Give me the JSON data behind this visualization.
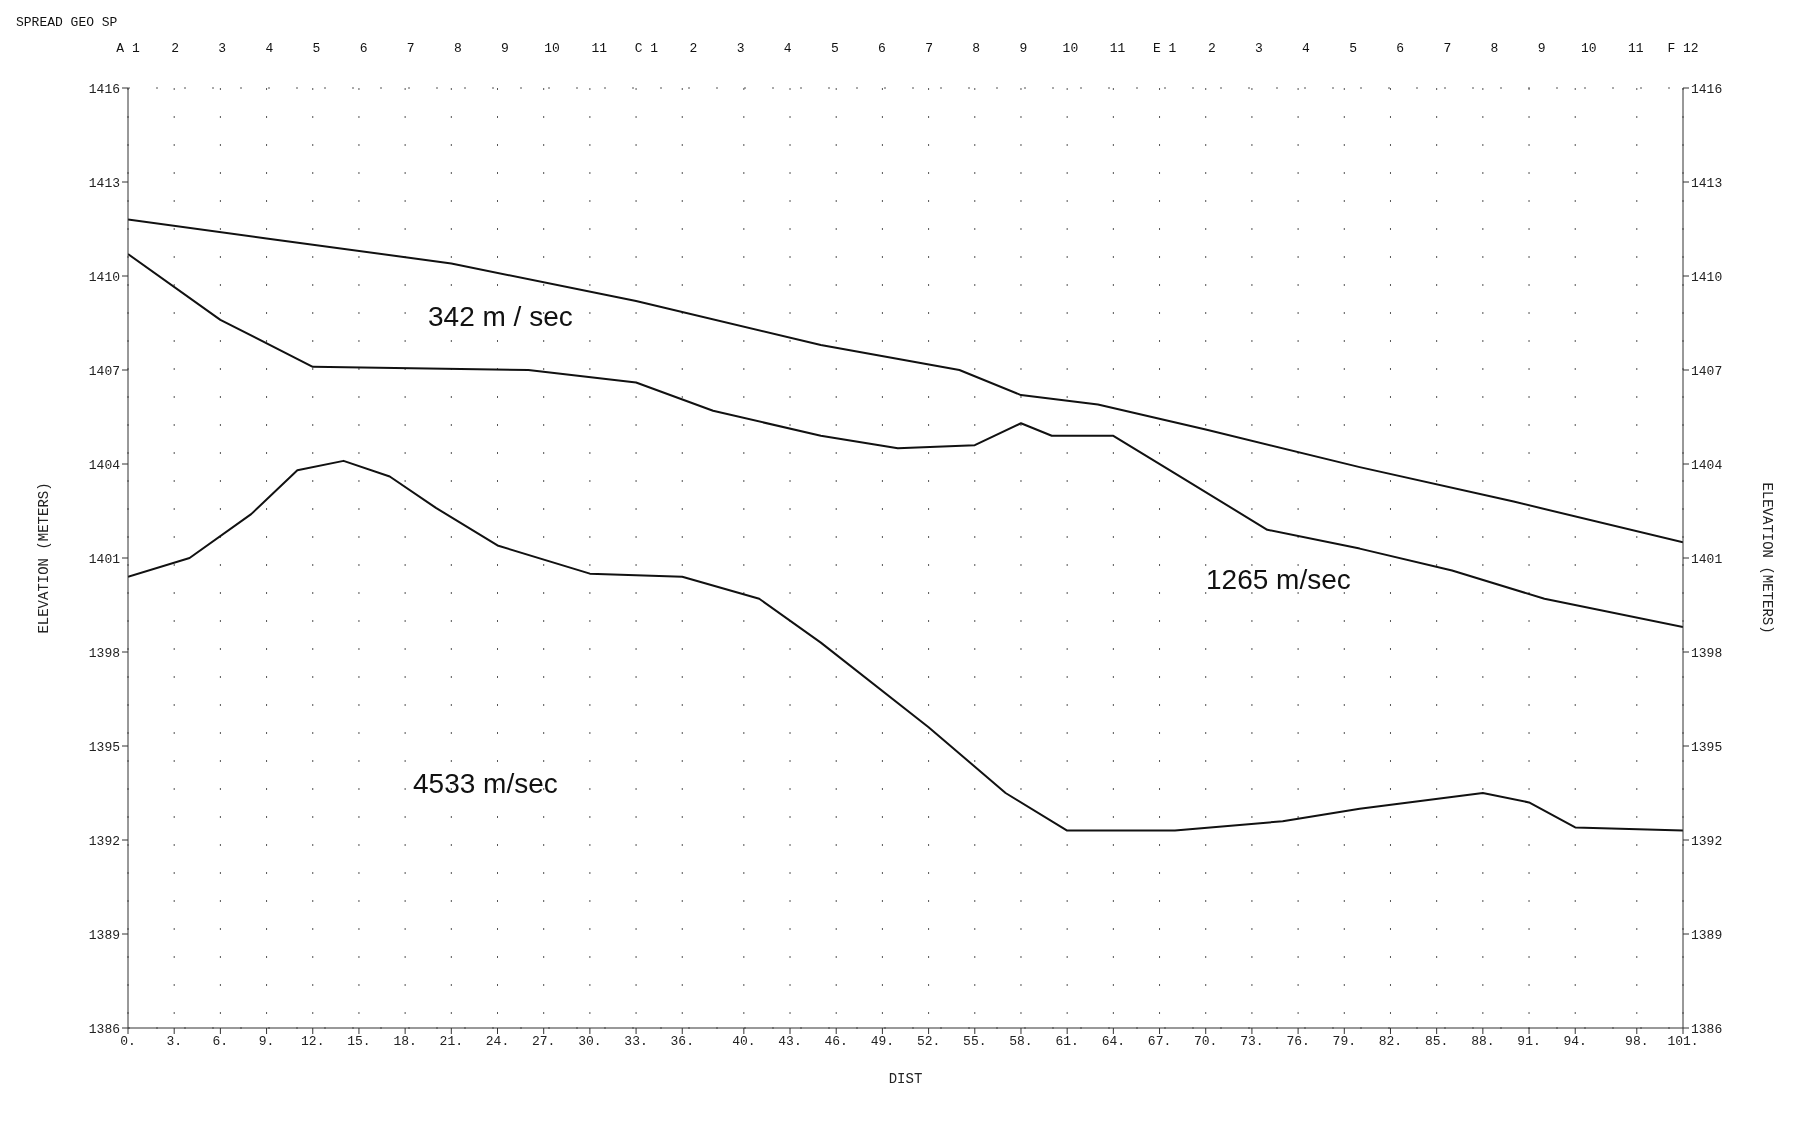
{
  "chart_data": {
    "type": "line",
    "xlabel": "DIST",
    "ylabel": "ELEVATION (METERS)",
    "y2label": "ELEVATION (METERS)",
    "xlim": [
      0,
      101
    ],
    "xticks": [
      {
        "value": 0,
        "label": "0."
      },
      {
        "value": 3,
        "label": "3."
      },
      {
        "value": 6,
        "label": "6."
      },
      {
        "value": 9,
        "label": "9."
      },
      {
        "value": 12,
        "label": "12."
      },
      {
        "value": 15,
        "label": "15."
      },
      {
        "value": 18,
        "label": "18."
      },
      {
        "value": 21,
        "label": "21."
      },
      {
        "value": 24,
        "label": "24."
      },
      {
        "value": 27,
        "label": "27."
      },
      {
        "value": 30,
        "label": "30."
      },
      {
        "value": 33,
        "label": "33."
      },
      {
        "value": 36,
        "label": "36."
      },
      {
        "value": 40,
        "label": "40."
      },
      {
        "value": 43,
        "label": "43."
      },
      {
        "value": 46,
        "label": "46."
      },
      {
        "value": 49,
        "label": "49."
      },
      {
        "value": 52,
        "label": "52."
      },
      {
        "value": 55,
        "label": "55."
      },
      {
        "value": 58,
        "label": "58."
      },
      {
        "value": 61,
        "label": "61."
      },
      {
        "value": 64,
        "label": "64."
      },
      {
        "value": 67,
        "label": "67."
      },
      {
        "value": 70,
        "label": "70."
      },
      {
        "value": 73,
        "label": "73."
      },
      {
        "value": 76,
        "label": "76."
      },
      {
        "value": 79,
        "label": "79."
      },
      {
        "value": 82,
        "label": "82."
      },
      {
        "value": 85,
        "label": "85."
      },
      {
        "value": 88,
        "label": "88."
      },
      {
        "value": 91,
        "label": "91."
      },
      {
        "value": 94,
        "label": "94."
      },
      {
        "value": 98,
        "label": "98."
      },
      {
        "value": 101,
        "label": "101."
      }
    ],
    "ylim": [
      1386,
      1416
    ],
    "yticks": [
      1386,
      1389,
      1392,
      1395,
      1398,
      1401,
      1404,
      1407,
      1410,
      1413,
      1416
    ],
    "y2lim": [
      1386,
      1416
    ],
    "y2ticks": [
      1386,
      1389,
      1392,
      1395,
      1398,
      1401,
      1404,
      1407,
      1410,
      1413,
      1416
    ],
    "grid": true,
    "marker": "none",
    "line_style": "solid",
    "series": [
      {
        "color": "#111111",
        "x": [
          0,
          9,
          21,
          33,
          45,
          54,
          58,
          63,
          70,
          80,
          90,
          101
        ],
        "values": [
          1411.8,
          1411.2,
          1410.4,
          1409.2,
          1407.8,
          1407.0,
          1406.2,
          1405.9,
          1405.1,
          1403.9,
          1402.8,
          1401.5
        ]
      },
      {
        "color": "#111111",
        "x": [
          0,
          6,
          12,
          26,
          33,
          38,
          45,
          50,
          55,
          58,
          60,
          64,
          68,
          74,
          80,
          86,
          92,
          101
        ],
        "values": [
          1410.7,
          1408.6,
          1407.1,
          1407.0,
          1406.6,
          1405.7,
          1404.9,
          1404.5,
          1404.6,
          1405.3,
          1404.9,
          1404.9,
          1403.7,
          1401.9,
          1401.3,
          1400.6,
          1399.7,
          1398.8
        ]
      },
      {
        "color": "#111111",
        "x": [
          0,
          4,
          8,
          11,
          14,
          17,
          20,
          24,
          30,
          36,
          41,
          45,
          52,
          57,
          61,
          68,
          75,
          80,
          88,
          91,
          94,
          101
        ],
        "values": [
          1400.4,
          1401.0,
          1402.4,
          1403.8,
          1404.1,
          1403.6,
          1402.6,
          1401.4,
          1400.5,
          1400.4,
          1399.7,
          1398.3,
          1395.6,
          1393.5,
          1392.3,
          1392.3,
          1392.6,
          1393.0,
          1393.5,
          1393.2,
          1392.4,
          1392.3
        ]
      }
    ],
    "annotations": [
      "342 m / sec",
      "1265 m/sec",
      "4533 m/sec",
      "SPREAD GEO SP",
      "A 1 2 3 4 5 6 7 8 9 10 11",
      "C 1 2 3 4 5 6 7 8 9 10 11",
      "E 1 2 3 4 5 6 7 8 9 10 11",
      "F 12"
    ]
  }
}
